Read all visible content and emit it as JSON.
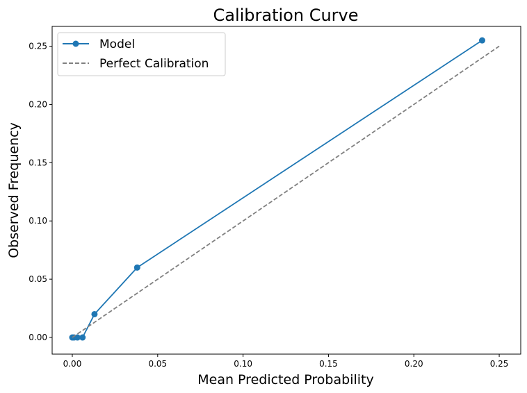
{
  "chart_data": {
    "type": "line",
    "title": "Calibration Curve",
    "xlabel": "Mean Predicted Probability",
    "ylabel": "Observed Frequency",
    "xlim": [
      -0.0118,
      0.2626
    ],
    "ylim": [
      -0.0143,
      0.267
    ],
    "xticks": [
      "0.00",
      "0.05",
      "0.10",
      "0.15",
      "0.20",
      "0.25"
    ],
    "yticks": [
      "0.00",
      "0.05",
      "0.10",
      "0.15",
      "0.20",
      "0.25"
    ],
    "grid": false,
    "legend_position": "top-left",
    "series": [
      {
        "name": "Model",
        "color": "#1f77b4",
        "style": "solid-marker",
        "x": [
          0.0,
          0.001,
          0.003,
          0.006,
          0.013,
          0.038,
          0.24
        ],
        "y": [
          0.0,
          0.0,
          0.0,
          0.0,
          0.02,
          0.06,
          0.255
        ]
      },
      {
        "name": "Perfect Calibration",
        "color": "#808080",
        "style": "dashed",
        "x": [
          0.0,
          0.25
        ],
        "y": [
          0.0,
          0.25
        ]
      }
    ]
  }
}
